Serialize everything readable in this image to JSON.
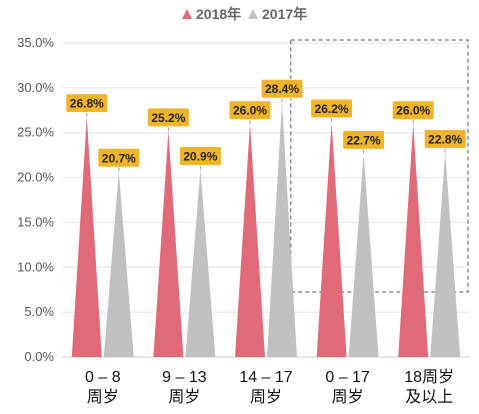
{
  "chart_data": {
    "type": "bar",
    "categories": [
      [
        "0 – 8",
        "周岁"
      ],
      [
        "9 – 13",
        "周岁"
      ],
      [
        "14 – 17",
        "周岁"
      ],
      [
        "0 – 17",
        "周岁"
      ],
      [
        "18周岁",
        "及以上"
      ]
    ],
    "series": [
      {
        "name": "2018年",
        "values": [
          26.8,
          25.2,
          26.0,
          26.2,
          26.0
        ],
        "labels": [
          "26.8%",
          "25.2%",
          "26.0%",
          "26.2%",
          "26.0%"
        ],
        "color": "#e06a78"
      },
      {
        "name": "2017年",
        "values": [
          20.7,
          20.9,
          28.4,
          22.7,
          22.8
        ],
        "labels": [
          "20.7%",
          "20.9%",
          "28.4%",
          "22.7%",
          "22.8%"
        ],
        "color": "#c0c0c0"
      }
    ],
    "yticks": [
      "0.0%",
      "5.0%",
      "10.0%",
      "15.0%",
      "20.0%",
      "25.0%",
      "30.0%",
      "35.0%"
    ],
    "ylim": [
      0,
      35
    ],
    "label_box_color": "#f0b428",
    "legend_position": "top",
    "highlight_box": {
      "from_category": 3,
      "to_category": 4,
      "style": "dashed"
    }
  }
}
